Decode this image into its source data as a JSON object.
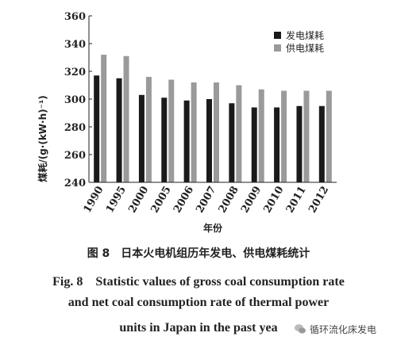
{
  "chart_data": {
    "type": "bar",
    "categories": [
      "1990",
      "1995",
      "2000",
      "2005",
      "2006",
      "2007",
      "2008",
      "2009",
      "2010",
      "2011",
      "2012"
    ],
    "series": [
      {
        "name": "发电煤耗",
        "color": "#1a1a1a",
        "values": [
          317,
          315,
          303,
          301,
          299,
          300,
          297,
          294,
          294,
          295,
          295
        ]
      },
      {
        "name": "供电煤耗",
        "color": "#9a9a9a",
        "values": [
          332,
          331,
          316,
          314,
          312,
          312,
          310,
          307,
          306,
          306,
          306
        ]
      }
    ],
    "ylabel": "煤耗/(g·(kW·h)⁻¹)",
    "xlabel": "年份",
    "ylim": [
      240,
      360
    ],
    "yticks": [
      240,
      260,
      280,
      300,
      320,
      340,
      360
    ],
    "grid": false,
    "legend_position": "top-right"
  },
  "caption": {
    "cn": "图 8　日本火电机组历年发电、供电煤耗统计",
    "en_lines": [
      "Fig. 8　Statistic values of gross coal consumption rate",
      "and net coal consumption rate of thermal power",
      "units in Japan in the past yea"
    ]
  },
  "watermark": {
    "text": "循环流化床发电",
    "icon": "wechat-icon"
  }
}
